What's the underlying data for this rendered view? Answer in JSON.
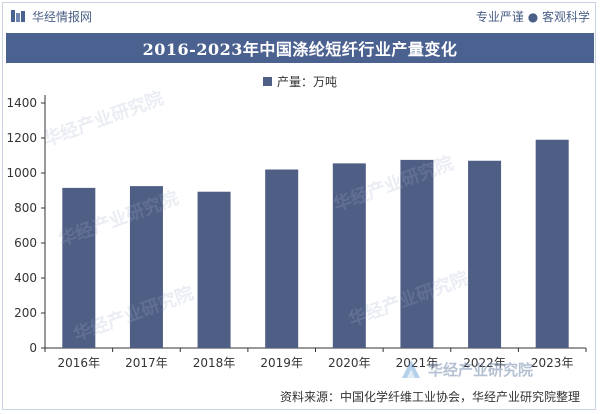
{
  "header": {
    "brand": "华经情报网",
    "slogan": "专业严谨 ● 客观科学"
  },
  "watermark": {
    "text": "华经产业研究院"
  },
  "source_note": "资料来源：中国化学纤维工业协会，华经产业研究院整理",
  "colors": {
    "bar": "#4f5e84",
    "title_bg": "#4b6291",
    "axis": "#333333"
  },
  "chart_data": {
    "type": "bar",
    "title": "2016-2023年中国涤纶短纤行业产量变化",
    "categories": [
      "2016年",
      "2017年",
      "2018年",
      "2019年",
      "2020年",
      "2021年",
      "2022年",
      "2023年"
    ],
    "series": [
      {
        "name": "产量：万吨",
        "values": [
          915,
          925,
          893,
          1020,
          1055,
          1075,
          1070,
          1190
        ]
      }
    ],
    "ylim": [
      0,
      1400
    ],
    "yticks": [
      0,
      200,
      400,
      600,
      800,
      1000,
      1200,
      1400
    ],
    "grid": false,
    "legend_position": "top-center"
  }
}
